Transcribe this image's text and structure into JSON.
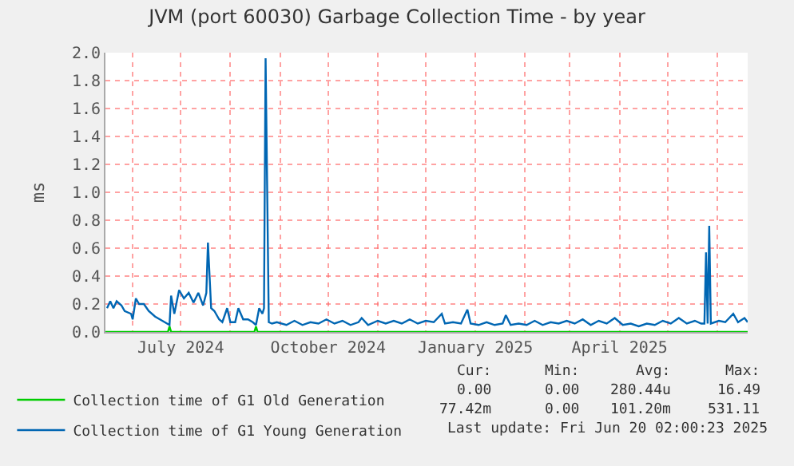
{
  "chart_data": {
    "type": "line",
    "title": "JVM (port 60030) Garbage Collection Time - by year",
    "ylabel": "ms",
    "xlim": [
      "2024-05-15",
      "2025-06-20"
    ],
    "ylim": [
      0,
      2.0
    ],
    "xticks": [
      {
        "value": "2024-06-01",
        "label": null
      },
      {
        "value": "2024-07-01",
        "label": "July 2024"
      },
      {
        "value": "2024-08-01",
        "label": null
      },
      {
        "value": "2024-09-01",
        "label": null
      },
      {
        "value": "2024-10-01",
        "label": "October 2024"
      },
      {
        "value": "2024-11-01",
        "label": null
      },
      {
        "value": "2024-12-01",
        "label": null
      },
      {
        "value": "2025-01-01",
        "label": "January 2025"
      },
      {
        "value": "2025-02-01",
        "label": null
      },
      {
        "value": "2025-03-01",
        "label": null
      },
      {
        "value": "2025-04-01",
        "label": "April 2025"
      },
      {
        "value": "2025-05-01",
        "label": null
      },
      {
        "value": "2025-06-01",
        "label": null
      }
    ],
    "yticks": [
      {
        "value": 0,
        "label": "0.0"
      },
      {
        "value": 0.2,
        "label": "0.2"
      },
      {
        "value": 0.4,
        "label": "0.4"
      },
      {
        "value": 0.6,
        "label": "0.6"
      },
      {
        "value": 0.8,
        "label": "0.8"
      },
      {
        "value": 1.0,
        "label": "1.0"
      },
      {
        "value": 1.2,
        "label": "1.2"
      },
      {
        "value": 1.4,
        "label": "1.4"
      },
      {
        "value": 1.6,
        "label": "1.6"
      },
      {
        "value": 1.8,
        "label": "1.8"
      },
      {
        "value": 2.0,
        "label": "2.0"
      }
    ],
    "grid": true,
    "legend": "bottom",
    "marker": "none",
    "line_style": "solid",
    "series": [
      {
        "name": "Collection time of G1 Old Generation",
        "color": "#00cc00",
        "x": [
          "2024-05-15",
          "2024-06-23",
          "2024-06-24",
          "2024-06-25",
          "2024-08-16",
          "2024-08-17",
          "2024-08-18",
          "2025-06-20"
        ],
        "values": [
          0,
          0,
          0.04,
          0,
          0,
          0.04,
          0,
          0
        ]
      },
      {
        "name": "Collection time of G1 Young Generation",
        "color": "#0066b3",
        "x": [
          "2024-05-16",
          "2024-05-18",
          "2024-05-20",
          "2024-05-22",
          "2024-05-25",
          "2024-05-27",
          "2024-05-31",
          "2024-06-01",
          "2024-06-03",
          "2024-06-05",
          "2024-06-08",
          "2024-06-11",
          "2024-06-15",
          "2024-06-18",
          "2024-06-21",
          "2024-06-24",
          "2024-06-25",
          "2024-06-27",
          "2024-06-30",
          "2024-07-03",
          "2024-07-06",
          "2024-07-09",
          "2024-07-12",
          "2024-07-15",
          "2024-07-17",
          "2024-07-18",
          "2024-07-20",
          "2024-07-22",
          "2024-07-25",
          "2024-07-27",
          "2024-07-30",
          "2024-08-01",
          "2024-08-04",
          "2024-08-06",
          "2024-08-09",
          "2024-08-12",
          "2024-08-15",
          "2024-08-17",
          "2024-08-19",
          "2024-08-21",
          "2024-08-22",
          "2024-08-23",
          "2024-08-25",
          "2024-08-27",
          "2024-08-30",
          "2024-09-05",
          "2024-09-10",
          "2024-09-15",
          "2024-09-20",
          "2024-09-25",
          "2024-09-30",
          "2024-10-05",
          "2024-10-10",
          "2024-10-15",
          "2024-10-20",
          "2024-10-22",
          "2024-10-26",
          "2024-11-01",
          "2024-11-06",
          "2024-11-11",
          "2024-11-16",
          "2024-11-21",
          "2024-11-26",
          "2024-12-01",
          "2024-12-06",
          "2024-12-11",
          "2024-12-13",
          "2024-12-18",
          "2024-12-23",
          "2024-12-27",
          "2024-12-29",
          "2025-01-03",
          "2025-01-08",
          "2025-01-13",
          "2025-01-18",
          "2025-01-20",
          "2025-01-23",
          "2025-01-28",
          "2025-02-02",
          "2025-02-07",
          "2025-02-12",
          "2025-02-17",
          "2025-02-22",
          "2025-02-27",
          "2025-03-04",
          "2025-03-09",
          "2025-03-14",
          "2025-03-19",
          "2025-03-24",
          "2025-03-29",
          "2025-04-03",
          "2025-04-08",
          "2025-04-13",
          "2025-04-18",
          "2025-04-23",
          "2025-04-28",
          "2025-05-03",
          "2025-05-08",
          "2025-05-13",
          "2025-05-18",
          "2025-05-22",
          "2025-05-24",
          "2025-05-25",
          "2025-05-26",
          "2025-05-27",
          "2025-05-28",
          "2025-06-02",
          "2025-06-06",
          "2025-06-11",
          "2025-06-14",
          "2025-06-18",
          "2025-06-20"
        ],
        "values": [
          0.17,
          0.22,
          0.17,
          0.22,
          0.19,
          0.15,
          0.13,
          0.09,
          0.24,
          0.2,
          0.2,
          0.15,
          0.11,
          0.09,
          0.07,
          0.05,
          0.26,
          0.13,
          0.3,
          0.24,
          0.28,
          0.21,
          0.28,
          0.19,
          0.28,
          0.64,
          0.17,
          0.15,
          0.09,
          0.07,
          0.17,
          0.07,
          0.07,
          0.17,
          0.09,
          0.09,
          0.07,
          0.05,
          0.17,
          0.13,
          0.17,
          1.96,
          0.07,
          0.06,
          0.07,
          0.05,
          0.08,
          0.05,
          0.07,
          0.06,
          0.09,
          0.06,
          0.08,
          0.05,
          0.07,
          0.1,
          0.05,
          0.08,
          0.06,
          0.08,
          0.06,
          0.09,
          0.06,
          0.08,
          0.07,
          0.13,
          0.06,
          0.07,
          0.06,
          0.16,
          0.06,
          0.05,
          0.07,
          0.05,
          0.06,
          0.12,
          0.05,
          0.06,
          0.05,
          0.08,
          0.05,
          0.07,
          0.06,
          0.08,
          0.06,
          0.09,
          0.05,
          0.08,
          0.06,
          0.1,
          0.05,
          0.06,
          0.04,
          0.06,
          0.05,
          0.08,
          0.06,
          0.1,
          0.06,
          0.08,
          0.06,
          0.06,
          0.57,
          0.06,
          0.76,
          0.06,
          0.08,
          0.07,
          0.13,
          0.07,
          0.1,
          0.07
        ]
      }
    ],
    "annotations": [
      "Cur:",
      "Min:",
      "Avg:",
      "Max:",
      "0.00",
      "0.00",
      "280.44u",
      "16.49",
      "77.42m",
      "0.00",
      "101.20m",
      "531.11",
      "Last update: Fri Jun 20 02:00:23 2025"
    ]
  }
}
